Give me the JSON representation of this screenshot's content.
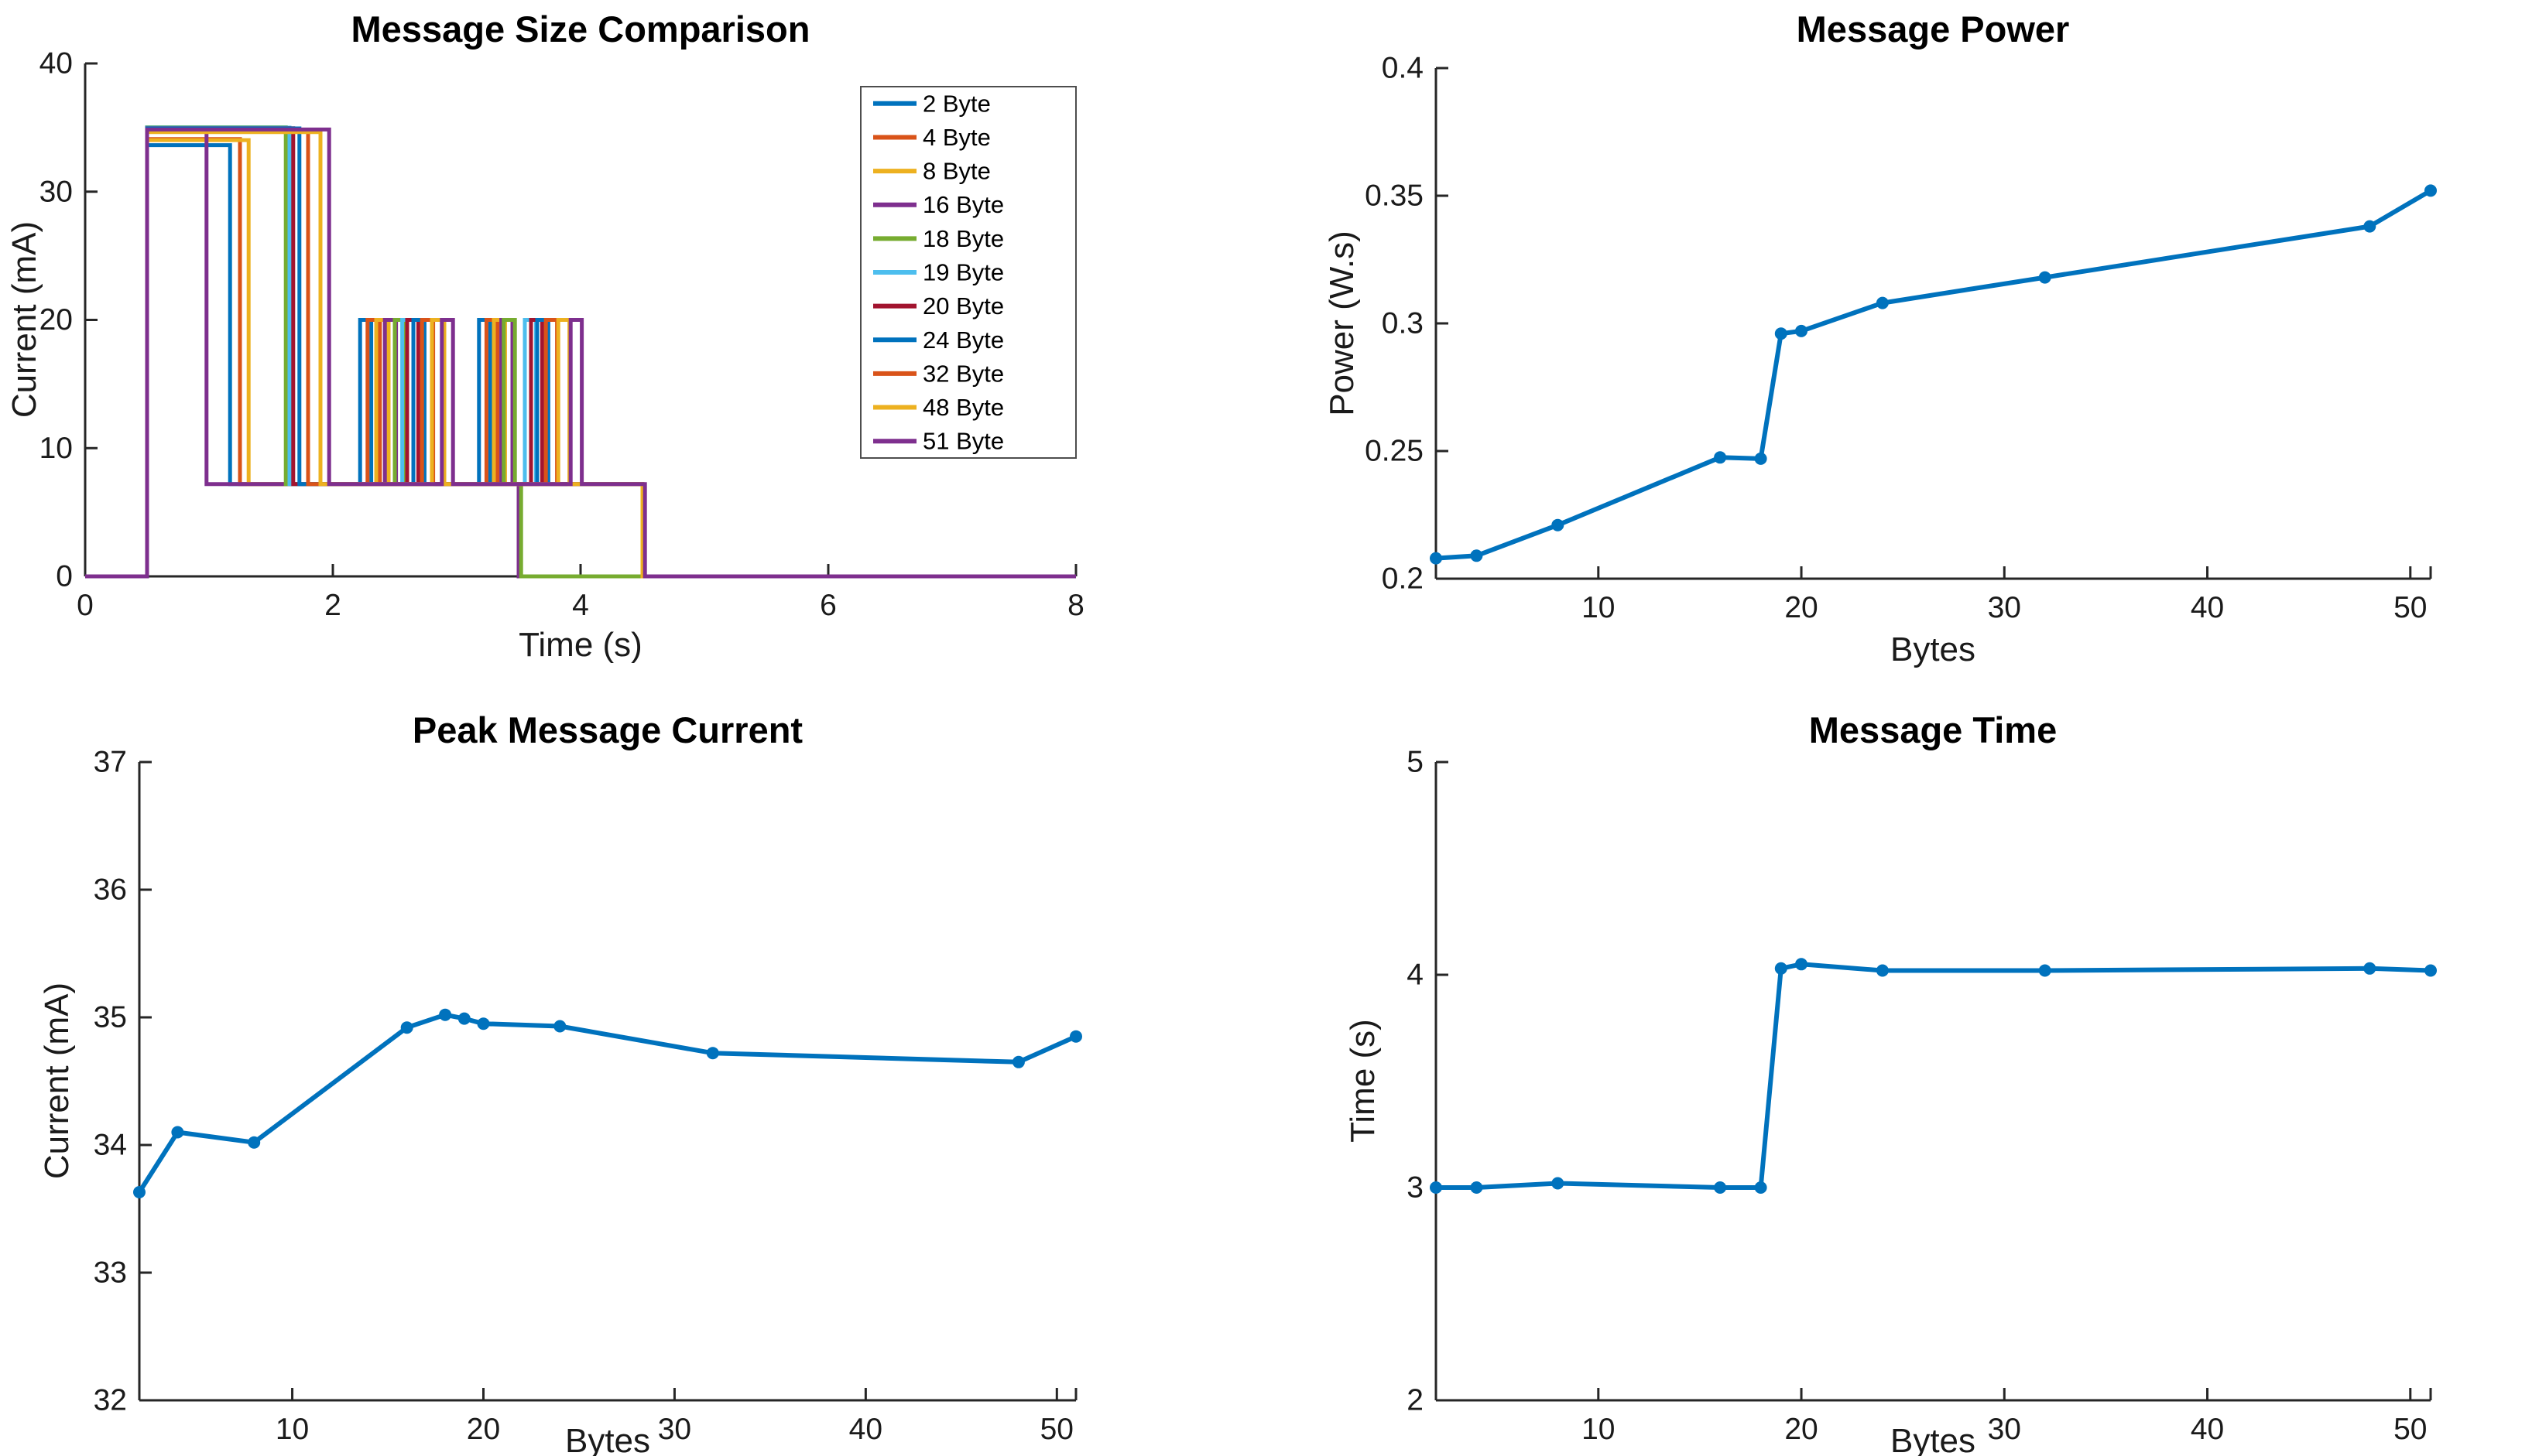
{
  "figure": {
    "background": "#ffffff",
    "axis_color": "#262626",
    "accent_blue": "#0072BD"
  },
  "chart_data": [
    {
      "id": "message-size-comparison",
      "type": "step",
      "title": "Message Size Comparison",
      "xlabel": "Time (s)",
      "ylabel": "Current (mA)",
      "xlim": [
        0,
        8
      ],
      "ylim": [
        0,
        40
      ],
      "xticks": [
        0,
        2,
        4,
        6,
        8
      ],
      "yticks": [
        0,
        10,
        20,
        30,
        40
      ],
      "grid": false,
      "legend_position": "upper-right-inside",
      "series": [
        {
          "name": "2 Byte",
          "color": "#0072BD",
          "steps": [
            [
              0,
              0
            ],
            [
              0.5,
              33.63
            ],
            [
              1.17,
              7.2
            ],
            [
              2.22,
              20
            ],
            [
              2.31,
              7.2
            ],
            [
              3.18,
              20
            ],
            [
              3.27,
              7.2
            ],
            [
              3.5,
              0
            ]
          ]
        },
        {
          "name": "4 Byte",
          "color": "#D95319",
          "steps": [
            [
              0,
              0
            ],
            [
              0.5,
              34.1
            ],
            [
              1.25,
              7.2
            ],
            [
              2.28,
              20
            ],
            [
              2.38,
              7.2
            ],
            [
              3.24,
              20
            ],
            [
              3.33,
              7.2
            ],
            [
              3.5,
              0
            ]
          ]
        },
        {
          "name": "8 Byte",
          "color": "#EDB120",
          "steps": [
            [
              0,
              0
            ],
            [
              0.5,
              34.02
            ],
            [
              1.32,
              7.2
            ],
            [
              2.35,
              20
            ],
            [
              2.45,
              7.2
            ],
            [
              3.3,
              20
            ],
            [
              3.39,
              7.2
            ],
            [
              3.5,
              0
            ]
          ]
        },
        {
          "name": "16 Byte",
          "color": "#7E2F8E",
          "steps": [
            [
              0,
              0
            ],
            [
              0.5,
              34.92
            ],
            [
              0.98,
              7.2
            ],
            [
              2.42,
              20
            ],
            [
              2.51,
              7.2
            ],
            [
              3.36,
              20
            ],
            [
              3.45,
              7.2
            ],
            [
              3.5,
              0
            ]
          ]
        },
        {
          "name": "18 Byte",
          "color": "#77AC30",
          "steps": [
            [
              0,
              0
            ],
            [
              0.5,
              35.02
            ],
            [
              1.62,
              7.2
            ],
            [
              2.5,
              20
            ],
            [
              2.59,
              7.2
            ],
            [
              3.38,
              20
            ],
            [
              3.47,
              7.2
            ],
            [
              3.52,
              0
            ]
          ]
        },
        {
          "name": "19 Byte",
          "color": "#4DBEEE",
          "steps": [
            [
              0,
              0
            ],
            [
              0.5,
              34.99
            ],
            [
              1.65,
              7.2
            ],
            [
              2.56,
              20
            ],
            [
              2.65,
              7.2
            ],
            [
              3.55,
              20
            ],
            [
              3.64,
              7.2
            ],
            [
              4.5,
              0
            ]
          ]
        },
        {
          "name": "20 Byte",
          "color": "#A2142F",
          "steps": [
            [
              0,
              0
            ],
            [
              0.5,
              34.95
            ],
            [
              1.68,
              7.2
            ],
            [
              2.6,
              20
            ],
            [
              2.69,
              7.2
            ],
            [
              3.6,
              20
            ],
            [
              3.69,
              7.2
            ],
            [
              4.5,
              0
            ]
          ]
        },
        {
          "name": "24 Byte",
          "color": "#0072BD",
          "steps": [
            [
              0,
              0
            ],
            [
              0.5,
              34.93
            ],
            [
              1.73,
              7.2
            ],
            [
              2.65,
              20
            ],
            [
              2.74,
              7.2
            ],
            [
              3.65,
              20
            ],
            [
              3.74,
              7.2
            ],
            [
              4.5,
              0
            ]
          ]
        },
        {
          "name": "32 Byte",
          "color": "#D95319",
          "steps": [
            [
              0,
              0
            ],
            [
              0.5,
              34.72
            ],
            [
              1.8,
              7.2
            ],
            [
              2.72,
              20
            ],
            [
              2.81,
              7.2
            ],
            [
              3.72,
              20
            ],
            [
              3.81,
              7.2
            ],
            [
              4.5,
              0
            ]
          ]
        },
        {
          "name": "48 Byte",
          "color": "#EDB120",
          "steps": [
            [
              0,
              0
            ],
            [
              0.5,
              34.65
            ],
            [
              1.9,
              7.2
            ],
            [
              2.8,
              20
            ],
            [
              2.9,
              7.2
            ],
            [
              3.82,
              20
            ],
            [
              3.91,
              7.2
            ],
            [
              4.5,
              0
            ]
          ]
        },
        {
          "name": "51 Byte",
          "color": "#7E2F8E",
          "steps": [
            [
              0,
              0
            ],
            [
              0.5,
              34.85
            ],
            [
              1.97,
              7.2
            ],
            [
              2.88,
              20
            ],
            [
              2.97,
              7.2
            ],
            [
              3.92,
              20
            ],
            [
              4.01,
              7.2
            ],
            [
              4.52,
              0
            ]
          ]
        }
      ]
    },
    {
      "id": "message-power",
      "type": "line",
      "title": "Message Power",
      "xlabel": "Bytes",
      "ylabel": "Power (W.s)",
      "xlim": [
        2,
        51
      ],
      "ylim": [
        0.2,
        0.4
      ],
      "xticks": [
        10,
        20,
        30,
        40,
        50
      ],
      "yticks": [
        0.2,
        0.25,
        0.3,
        0.35,
        0.4
      ],
      "grid": false,
      "line_color": "#0072BD",
      "marker": "o",
      "x": [
        2,
        4,
        8,
        16,
        18,
        19,
        20,
        24,
        32,
        48,
        51
      ],
      "y": [
        0.208,
        0.209,
        0.221,
        0.2475,
        0.247,
        0.296,
        0.297,
        0.308,
        0.318,
        0.338,
        0.352
      ]
    },
    {
      "id": "peak-message-current",
      "type": "line",
      "title": "Peak Message Current",
      "xlabel": "Bytes",
      "ylabel": "Current (mA)",
      "xlim": [
        2,
        51
      ],
      "ylim": [
        32,
        37
      ],
      "xticks": [
        10,
        20,
        30,
        40,
        50
      ],
      "yticks": [
        32,
        33,
        34,
        35,
        36,
        37
      ],
      "grid": false,
      "line_color": "#0072BD",
      "marker": "o",
      "x": [
        2,
        4,
        8,
        16,
        18,
        19,
        20,
        24,
        32,
        48,
        51
      ],
      "y": [
        33.63,
        34.1,
        34.02,
        34.92,
        35.02,
        34.99,
        34.95,
        34.93,
        34.72,
        34.65,
        34.85
      ]
    },
    {
      "id": "message-time",
      "type": "line",
      "title": "Message Time",
      "xlabel": "Bytes",
      "ylabel": "Time (s)",
      "xlim": [
        2,
        51
      ],
      "ylim": [
        2,
        5
      ],
      "xticks": [
        10,
        20,
        30,
        40,
        50
      ],
      "yticks": [
        2,
        3,
        4,
        5
      ],
      "grid": false,
      "line_color": "#0072BD",
      "marker": "o",
      "x": [
        2,
        4,
        8,
        16,
        18,
        19,
        20,
        24,
        32,
        48,
        51
      ],
      "y": [
        3.0,
        3.0,
        3.02,
        3.0,
        3.0,
        4.03,
        4.05,
        4.02,
        4.02,
        4.03,
        4.02
      ]
    }
  ]
}
